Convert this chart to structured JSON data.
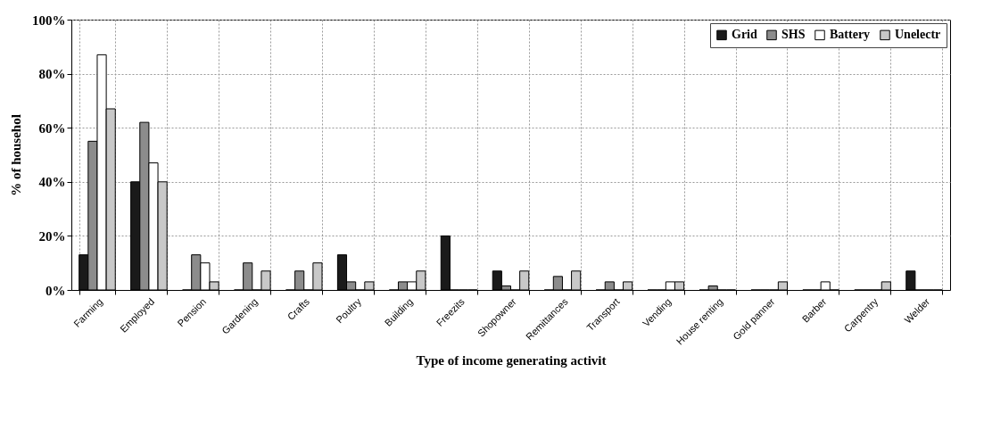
{
  "chart_data": {
    "type": "bar",
    "xlabel": "Type of income generating activit",
    "ylabel": "% of househol",
    "categories": [
      "Farming",
      "Employed",
      "Pension",
      "Gardening",
      "Crafts",
      "Poultry",
      "Building",
      "Freezits",
      "Shopowner",
      "Remittances",
      "Transport",
      "Vending",
      "House renting",
      "Gold panner",
      "Barber",
      "Carpentry",
      "Welder"
    ],
    "series": [
      {
        "name": "Grid",
        "color": "#1a1a1a",
        "values": [
          13,
          40,
          0,
          0,
          0,
          13,
          0,
          20,
          7,
          0,
          0,
          0,
          0,
          0,
          0,
          0,
          7
        ]
      },
      {
        "name": "SHS",
        "color": "#8c8c8c",
        "values": [
          55,
          62,
          13,
          10,
          7,
          3,
          3,
          0,
          1.5,
          5,
          3,
          0,
          1.5,
          0,
          0,
          0,
          0
        ]
      },
      {
        "name": "Battery",
        "color": "#ffffff",
        "values": [
          87,
          47,
          10,
          0,
          0,
          0,
          3,
          0,
          0,
          0,
          0,
          3,
          0,
          0,
          3,
          0,
          0
        ]
      },
      {
        "name": "Unelectr",
        "color": "#c8c8c8",
        "values": [
          67,
          40,
          3,
          7,
          10,
          3,
          7,
          0,
          7,
          7,
          3,
          3,
          0,
          3,
          0,
          3,
          0
        ]
      }
    ],
    "ylim": [
      0,
      100
    ],
    "yticks": [
      {
        "value": 0,
        "label": "0%"
      },
      {
        "value": 20,
        "label": "20%"
      },
      {
        "value": 40,
        "label": "40%"
      },
      {
        "value": 60,
        "label": "60%"
      },
      {
        "value": 80,
        "label": "80%"
      },
      {
        "value": 100,
        "label": "100%"
      }
    ],
    "grid": true,
    "legend": "top right"
  }
}
